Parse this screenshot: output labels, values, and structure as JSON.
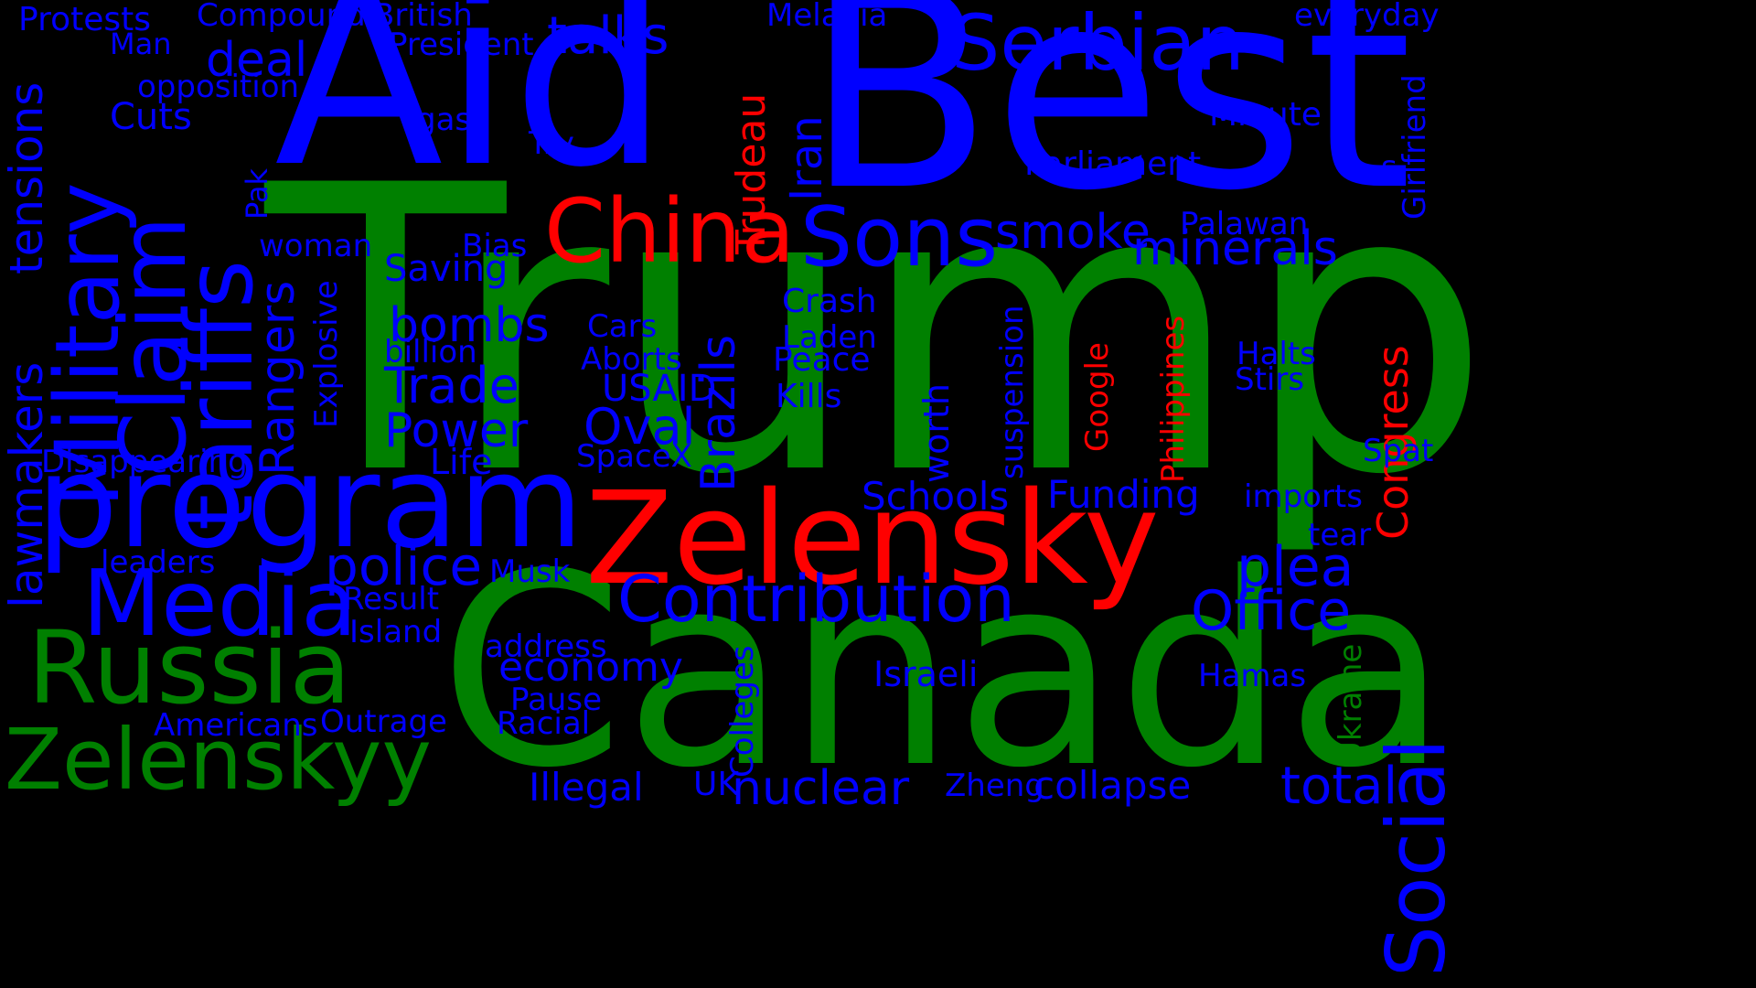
{
  "colors": {
    "background": "#000000",
    "green": "#008000",
    "blue": "#0000ff",
    "red": "#ff0000"
  },
  "words": [
    {
      "text": "Trump",
      "color": "green"
    },
    {
      "text": "Canada",
      "color": "green"
    },
    {
      "text": "Aid",
      "color": "blue"
    },
    {
      "text": "Best",
      "color": "blue"
    },
    {
      "text": "Zelensky",
      "color": "red"
    },
    {
      "text": "China",
      "color": "red"
    },
    {
      "text": "program",
      "color": "blue"
    },
    {
      "text": "Russia",
      "color": "green"
    },
    {
      "text": "Zelenskyy",
      "color": "green"
    },
    {
      "text": "Media",
      "color": "blue"
    },
    {
      "text": "Serbian",
      "color": "blue"
    },
    {
      "text": "Sons",
      "color": "blue"
    },
    {
      "text": "Military",
      "color": "blue"
    },
    {
      "text": "Claim",
      "color": "blue"
    },
    {
      "text": "tariffs",
      "color": "blue"
    },
    {
      "text": "Social",
      "color": "blue"
    },
    {
      "text": "Contribution",
      "color": "blue"
    },
    {
      "text": "Trudeau",
      "color": "red"
    },
    {
      "text": "Congress",
      "color": "red"
    },
    {
      "text": "Protests",
      "color": "blue"
    },
    {
      "text": "Compound",
      "color": "blue"
    },
    {
      "text": "British",
      "color": "blue"
    },
    {
      "text": "Melania",
      "color": "blue"
    },
    {
      "text": "everyday",
      "color": "blue"
    },
    {
      "text": "Man",
      "color": "blue"
    },
    {
      "text": "President",
      "color": "blue"
    },
    {
      "text": "talks",
      "color": "blue"
    },
    {
      "text": "deal",
      "color": "blue"
    },
    {
      "text": "opposition",
      "color": "blue"
    },
    {
      "text": "Cuts",
      "color": "blue"
    },
    {
      "text": "gas",
      "color": "blue"
    },
    {
      "text": "Try",
      "color": "blue"
    },
    {
      "text": "Minute",
      "color": "blue"
    },
    {
      "text": "Parliament",
      "color": "blue"
    },
    {
      "text": "s",
      "color": "blue"
    },
    {
      "text": "smoke",
      "color": "blue"
    },
    {
      "text": "minerals",
      "color": "blue"
    },
    {
      "text": "Palawan",
      "color": "blue"
    },
    {
      "text": "woman",
      "color": "blue"
    },
    {
      "text": "Bias",
      "color": "blue"
    },
    {
      "text": "Saving",
      "color": "blue"
    },
    {
      "text": "bombs",
      "color": "blue"
    },
    {
      "text": "Crash",
      "color": "blue"
    },
    {
      "text": "Cars",
      "color": "blue"
    },
    {
      "text": "Laden",
      "color": "blue"
    },
    {
      "text": "billion",
      "color": "blue"
    },
    {
      "text": "Aborts",
      "color": "blue"
    },
    {
      "text": "Peace",
      "color": "blue"
    },
    {
      "text": "Halts",
      "color": "blue"
    },
    {
      "text": "Stirs",
      "color": "blue"
    },
    {
      "text": "Trade",
      "color": "blue"
    },
    {
      "text": "USAID",
      "color": "blue"
    },
    {
      "text": "Kills",
      "color": "blue"
    },
    {
      "text": "Power",
      "color": "blue"
    },
    {
      "text": "Oval",
      "color": "blue"
    },
    {
      "text": "Disappearing",
      "color": "blue"
    },
    {
      "text": "Life",
      "color": "blue"
    },
    {
      "text": "SpaceX",
      "color": "blue"
    },
    {
      "text": "Spat",
      "color": "blue"
    },
    {
      "text": "Schools",
      "color": "blue"
    },
    {
      "text": "Funding",
      "color": "blue"
    },
    {
      "text": "imports",
      "color": "blue"
    },
    {
      "text": "tear",
      "color": "blue"
    },
    {
      "text": "leaders",
      "color": "blue"
    },
    {
      "text": "police",
      "color": "blue"
    },
    {
      "text": "Musk",
      "color": "blue"
    },
    {
      "text": "plea",
      "color": "blue"
    },
    {
      "text": "Office",
      "color": "blue"
    },
    {
      "text": "Result",
      "color": "blue"
    },
    {
      "text": "Island",
      "color": "blue"
    },
    {
      "text": "address",
      "color": "blue"
    },
    {
      "text": "economy",
      "color": "blue"
    },
    {
      "text": "Israeli",
      "color": "blue"
    },
    {
      "text": "Hamas",
      "color": "blue"
    },
    {
      "text": "Pause",
      "color": "blue"
    },
    {
      "text": "Americans",
      "color": "blue"
    },
    {
      "text": "Outrage",
      "color": "blue"
    },
    {
      "text": "Racial",
      "color": "blue"
    },
    {
      "text": "Illegal",
      "color": "blue"
    },
    {
      "text": "UK",
      "color": "blue"
    },
    {
      "text": "nuclear",
      "color": "blue"
    },
    {
      "text": "Zheng",
      "color": "blue"
    },
    {
      "text": "collapse",
      "color": "blue"
    },
    {
      "text": "total",
      "color": "blue"
    },
    {
      "text": "tensions",
      "color": "blue"
    },
    {
      "text": "lawmakers",
      "color": "blue"
    },
    {
      "text": "Pak",
      "color": "blue"
    },
    {
      "text": "Rangers",
      "color": "blue"
    },
    {
      "text": "Explosive",
      "color": "blue"
    },
    {
      "text": "Brazils",
      "color": "blue"
    },
    {
      "text": "Iran",
      "color": "blue"
    },
    {
      "text": "worth",
      "color": "blue"
    },
    {
      "text": "suspension",
      "color": "blue"
    },
    {
      "text": "Google",
      "color": "red"
    },
    {
      "text": "Philippines",
      "color": "red"
    },
    {
      "text": "Colleges",
      "color": "blue"
    },
    {
      "text": "Ukraine",
      "color": "green"
    },
    {
      "text": "Girlfriend",
      "color": "blue"
    }
  ]
}
